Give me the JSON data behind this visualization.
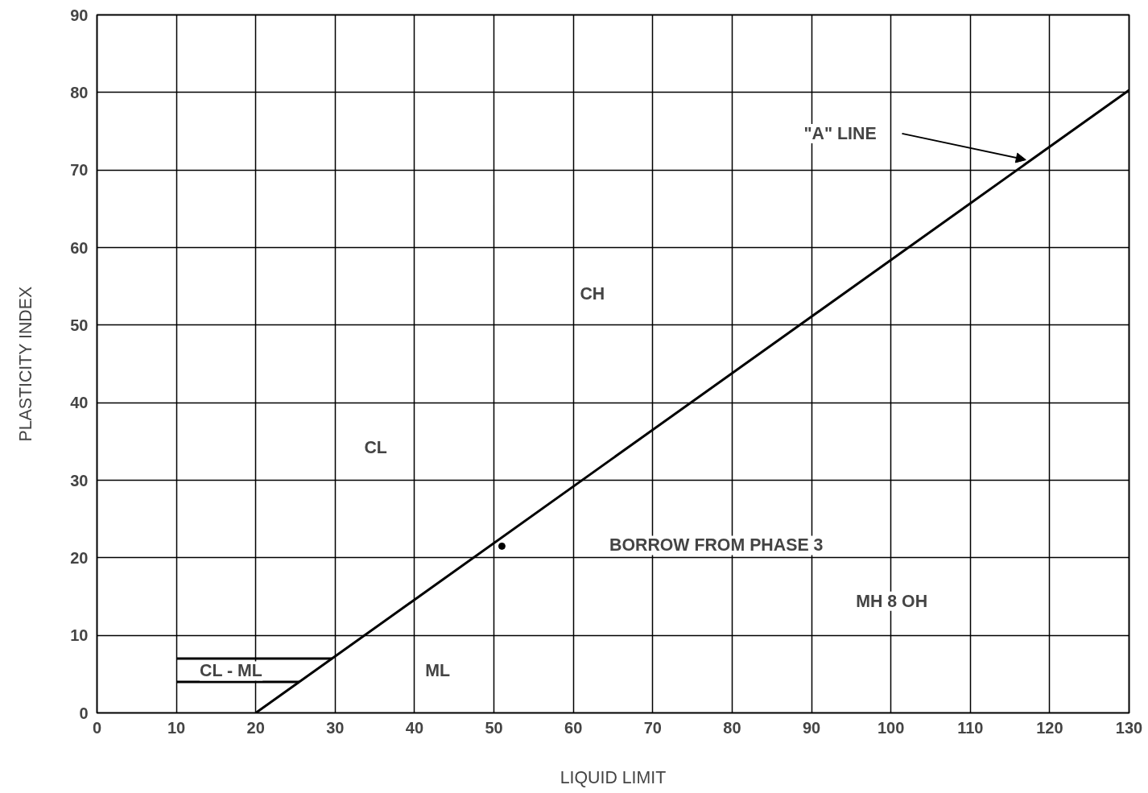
{
  "chart_data": {
    "type": "line",
    "xlabel": "LIQUID LIMIT",
    "ylabel": "PLASTICITY INDEX",
    "xlim": [
      0,
      130
    ],
    "ylim": [
      0,
      90
    ],
    "xticks": [
      0,
      10,
      20,
      30,
      40,
      50,
      60,
      70,
      80,
      90,
      100,
      110,
      120,
      130
    ],
    "yticks": [
      0,
      10,
      20,
      30,
      40,
      50,
      60,
      70,
      80,
      90
    ],
    "grid": true,
    "series": [
      {
        "color": "#000000",
        "x": [
          20,
          130
        ],
        "values": [
          0,
          80.3
        ]
      },
      {
        "color": "#000000",
        "x": [
          10,
          29.6
        ],
        "values": [
          7,
          7
        ]
      },
      {
        "color": "#000000",
        "x": [
          10,
          25.5
        ],
        "values": [
          4,
          4
        ]
      },
      {
        "type": "scatter",
        "color": "#000000",
        "marker": "circle",
        "x": [
          51
        ],
        "values": [
          21.5
        ]
      }
    ],
    "annotations": [
      "CL",
      "CH",
      "ML",
      "MH 8 OH",
      "CL - ML",
      "\"A\" LINE",
      "BORROW FROM PHASE 3"
    ]
  }
}
